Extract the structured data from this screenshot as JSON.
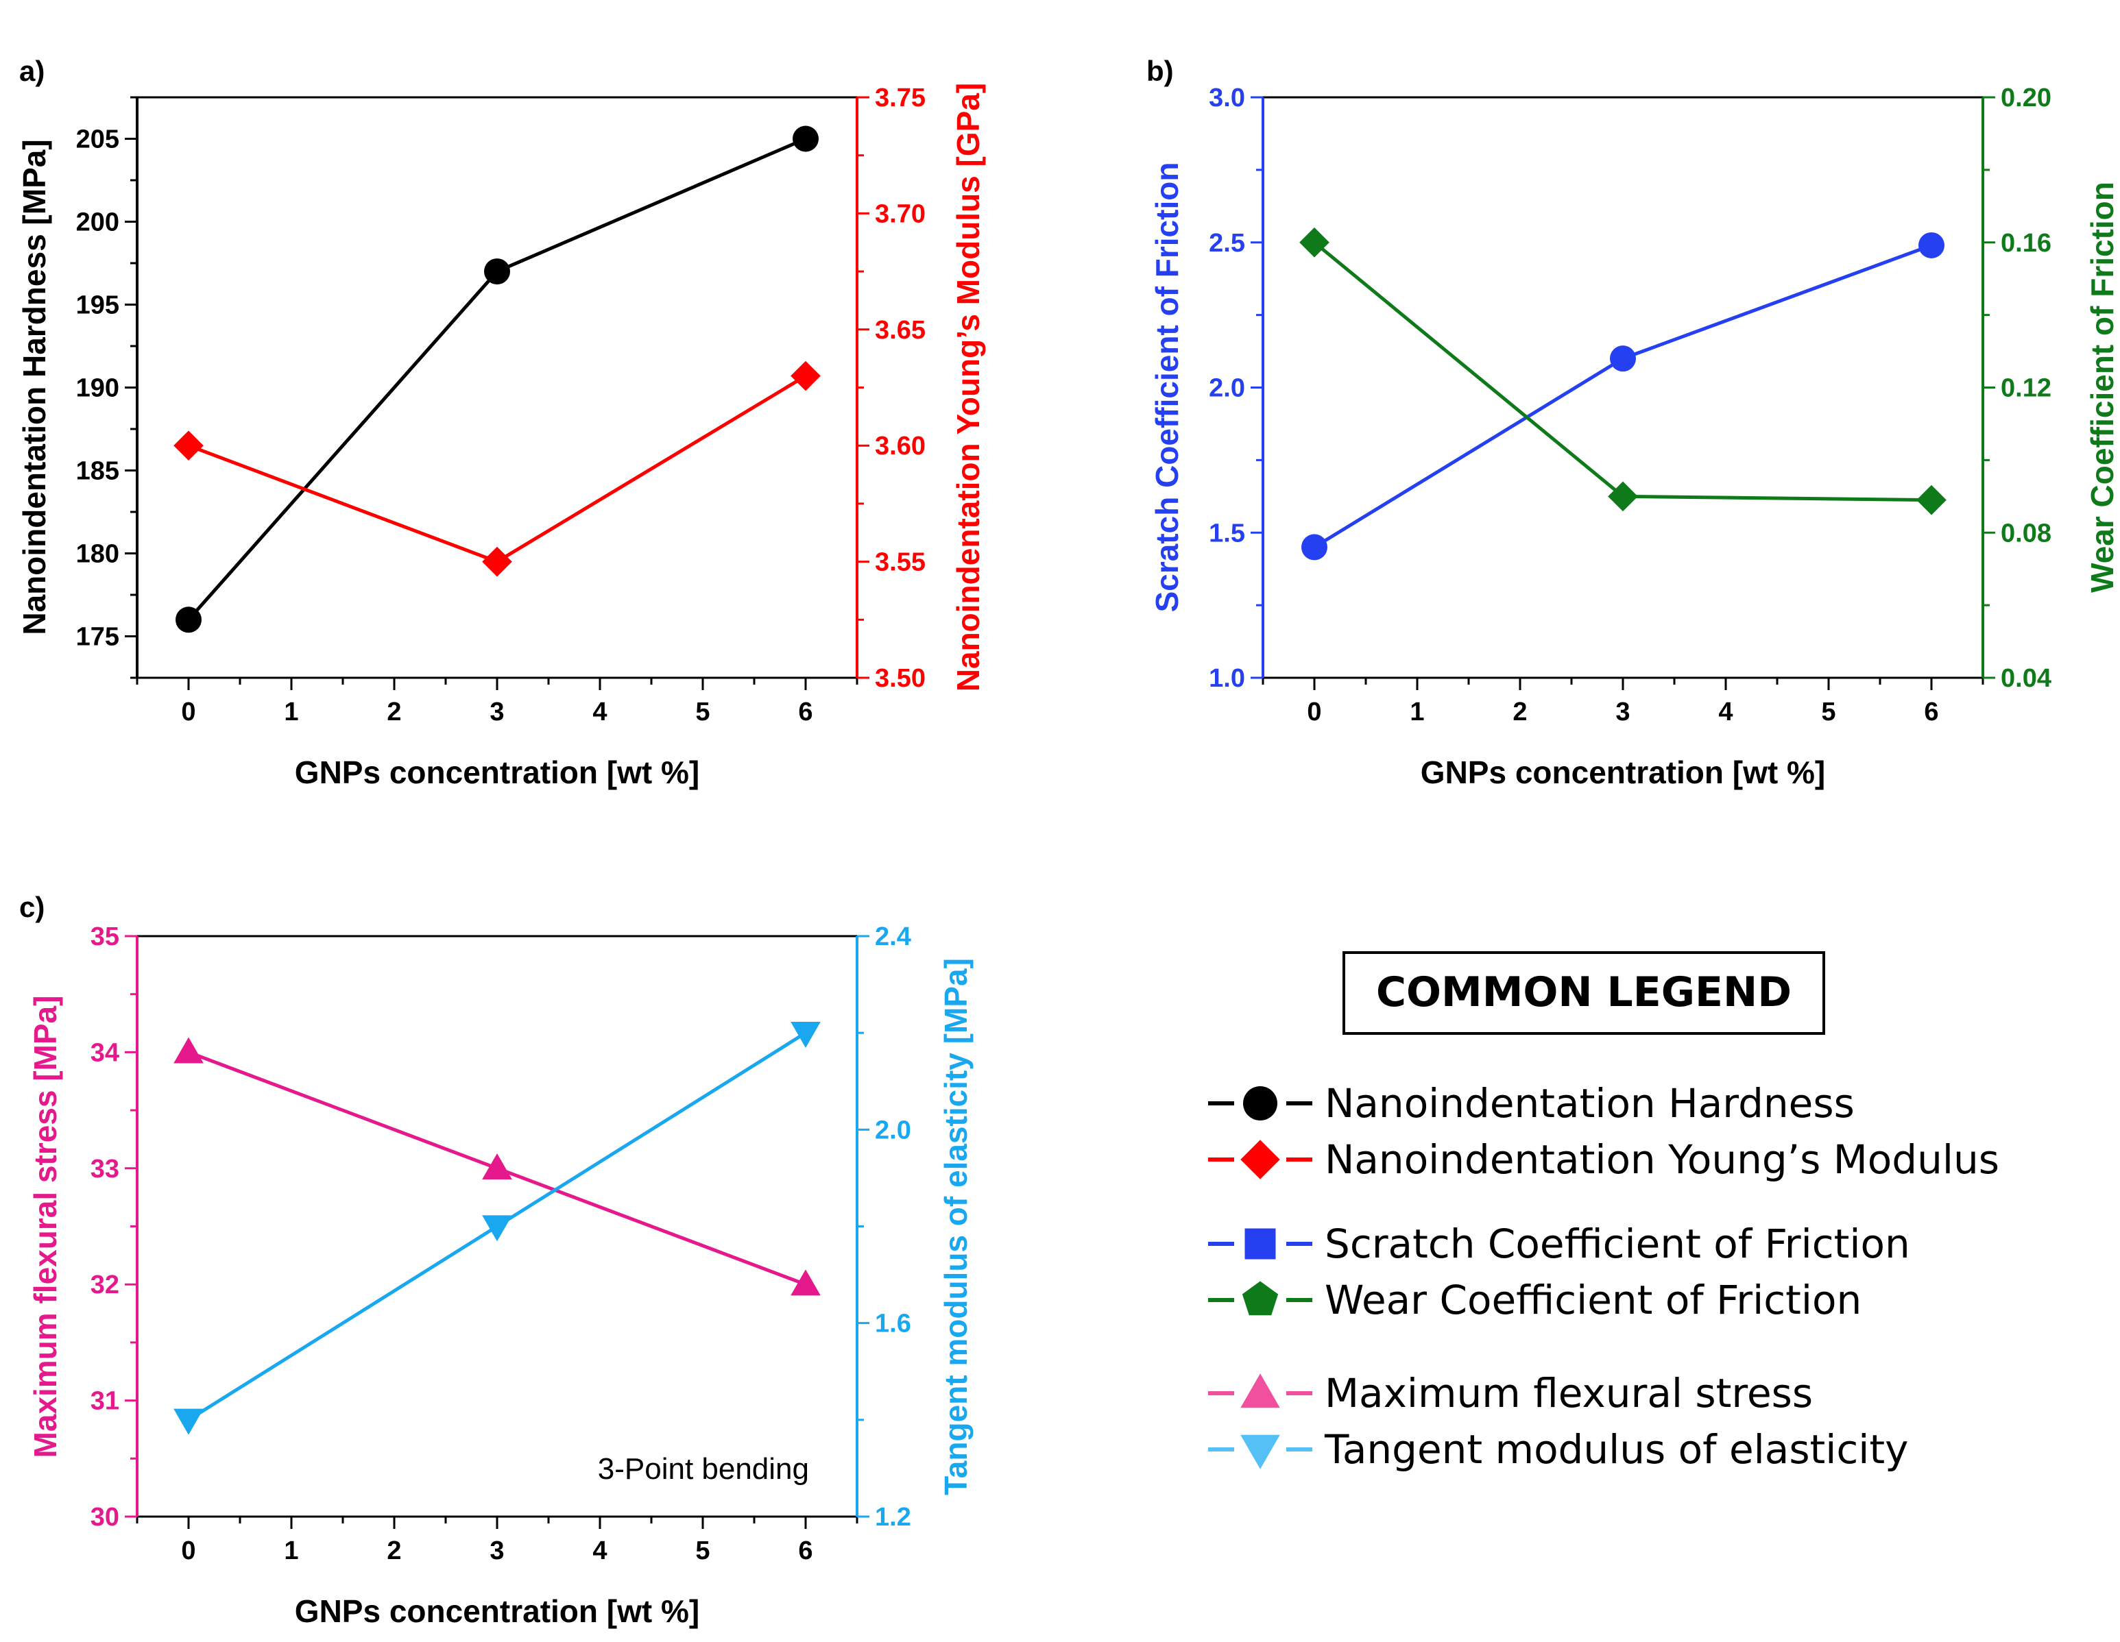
{
  "colors": {
    "hardness": "#000000",
    "youngs": "#ff0000",
    "scratch": "#2440f0",
    "wear": "#0f7a1a",
    "flexural": "#e5198c",
    "tangent": "#19a8f0",
    "legend_flexural": "#f0509e",
    "legend_tangent": "#55c0f5"
  },
  "chart_data": [
    {
      "panel": "a)",
      "type": "line",
      "x": [
        0,
        3,
        6
      ],
      "xlabel": "GNPs concentration [wt %]",
      "xlim": [
        -0.5,
        6.5
      ],
      "xticks": [
        "0",
        "1",
        "2",
        "3",
        "4",
        "5",
        "6"
      ],
      "left_axis": {
        "label": "Nanoindentation Hardness [MPa]",
        "lim": [
          172.5,
          207.5
        ],
        "ticks": [
          "175",
          "180",
          "185",
          "190",
          "195",
          "200",
          "205"
        ],
        "color": "#000000"
      },
      "right_axis": {
        "label": "Nanoindentation Young’s Modulus [GPa]",
        "lim": [
          3.5,
          3.75
        ],
        "ticks": [
          "3.50",
          "3.55",
          "3.60",
          "3.65",
          "3.70",
          "3.75"
        ],
        "color": "#ff0000"
      },
      "series": [
        {
          "name": "Nanoindentation Hardness",
          "axis": "left",
          "marker": "circle",
          "color": "#000000",
          "values": [
            176,
            197,
            205
          ]
        },
        {
          "name": "Nanoindentation Young’s Modulus",
          "axis": "right",
          "marker": "diamond",
          "color": "#ff0000",
          "values": [
            3.6,
            3.55,
            3.63
          ]
        }
      ]
    },
    {
      "panel": "b)",
      "type": "line",
      "x": [
        0,
        3,
        6
      ],
      "xlabel": "GNPs concentration [wt %]",
      "xlim": [
        -0.5,
        6.5
      ],
      "xticks": [
        "0",
        "1",
        "2",
        "3",
        "4",
        "5",
        "6"
      ],
      "left_axis": {
        "label": "Scratch Coefficient of Friction",
        "lim": [
          1.0,
          3.0
        ],
        "ticks": [
          "1.0",
          "1.5",
          "2.0",
          "2.5",
          "3.0"
        ],
        "color": "#2440f0"
      },
      "right_axis": {
        "label": "Wear Coefficient of Friction",
        "lim": [
          0.04,
          0.2
        ],
        "ticks": [
          "0.04",
          "0.08",
          "0.12",
          "0.16",
          "0.20"
        ],
        "color": "#0f7a1a"
      },
      "series": [
        {
          "name": "Scratch Coefficient of Friction",
          "axis": "left",
          "marker": "circle",
          "color": "#2440f0",
          "values": [
            1.45,
            2.1,
            2.49
          ]
        },
        {
          "name": "Wear Coefficient of Friction",
          "axis": "right",
          "marker": "diamond",
          "color": "#0f7a1a",
          "values": [
            0.16,
            0.09,
            0.089
          ]
        }
      ]
    },
    {
      "panel": "c)",
      "type": "line",
      "x": [
        0,
        3,
        6
      ],
      "xlabel": "GNPs concentration [wt %]",
      "xlim": [
        -0.5,
        6.5
      ],
      "xticks": [
        "0",
        "1",
        "2",
        "3",
        "4",
        "5",
        "6"
      ],
      "annotation": "3-Point bending",
      "left_axis": {
        "label": "Maximum flexural stress  [MPa]",
        "lim": [
          30,
          35
        ],
        "ticks": [
          "30",
          "31",
          "32",
          "33",
          "34",
          "35"
        ],
        "color": "#e5198c"
      },
      "right_axis": {
        "label": "Tangent modulus of elasticity  [MPa]",
        "lim": [
          1.2,
          2.4
        ],
        "ticks": [
          "1.2",
          "1.6",
          "2.0",
          "2.4"
        ],
        "color": "#19a8f0"
      },
      "series": [
        {
          "name": "Maximum flexural stress",
          "axis": "left",
          "marker": "triangle-up",
          "color": "#e5198c",
          "values": [
            34,
            33,
            32
          ]
        },
        {
          "name": "Tangent modulus of elasticity",
          "axis": "right",
          "marker": "triangle-down",
          "color": "#19a8f0",
          "values": [
            1.4,
            1.8,
            2.2
          ]
        }
      ]
    }
  ],
  "legend": {
    "title": "COMMON LEGEND",
    "items": [
      {
        "label": "Nanoindentation Hardness",
        "marker": "circle",
        "color": "#000000"
      },
      {
        "label": "Nanoindentation Young’s Modulus",
        "marker": "diamond",
        "color": "#ff0000"
      },
      {
        "label": "Scratch Coefficient of Friction",
        "marker": "square",
        "color": "#2440f0"
      },
      {
        "label": "Wear Coefficient of Friction",
        "marker": "pentagon",
        "color": "#0f7a1a"
      },
      {
        "label": "Maximum flexural stress",
        "marker": "triangle-up",
        "color": "#f0509e"
      },
      {
        "label": "Tangent modulus of elasticity",
        "marker": "triangle-down",
        "color": "#55c0f5"
      }
    ]
  }
}
